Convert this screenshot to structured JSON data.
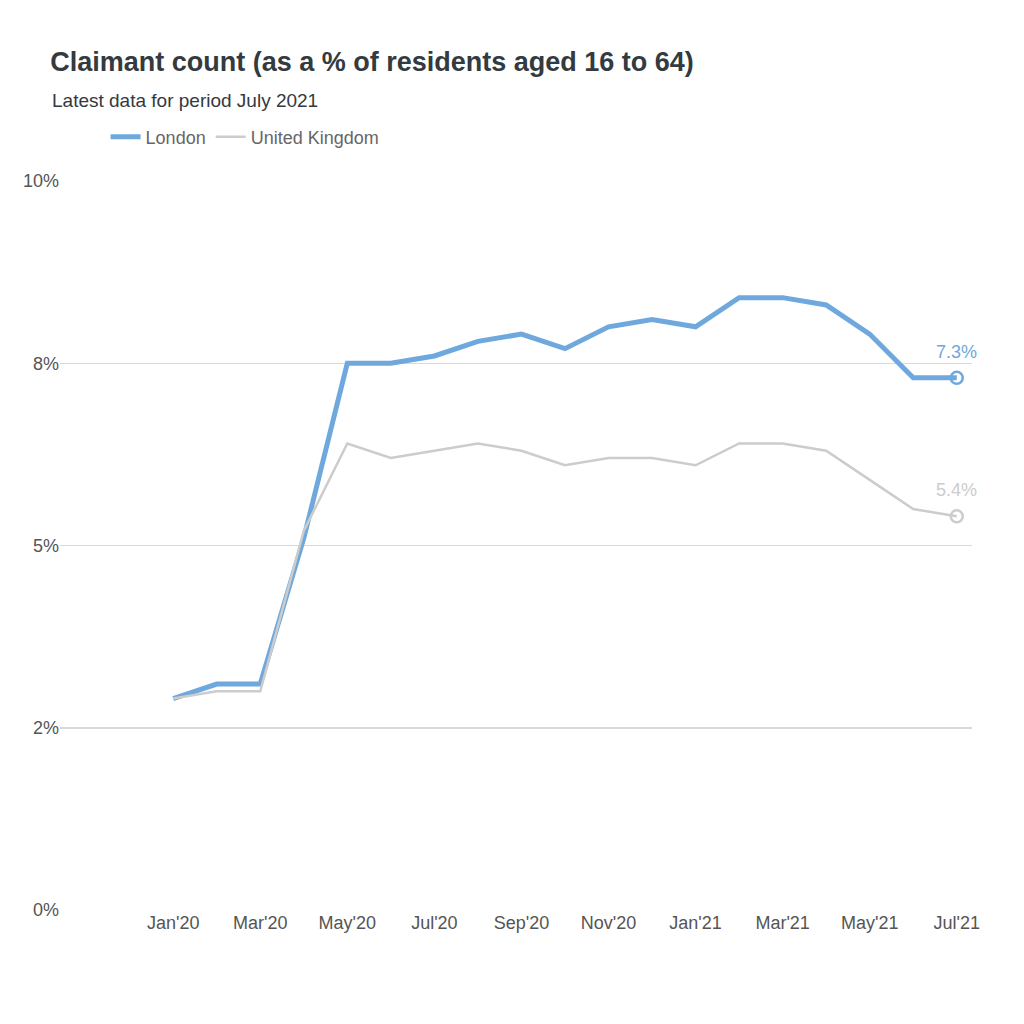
{
  "chart_data": {
    "type": "line",
    "title": "Claimant count (as a % of residents aged 16 to 64)",
    "subtitle": "Latest data for period July 2021",
    "categories": [
      "Jan'20",
      null,
      "Mar'20",
      null,
      "May'20",
      null,
      "Jul'20",
      null,
      "Sep'20",
      null,
      "Nov'20",
      null,
      "Jan'21",
      null,
      "Mar'21",
      null,
      "May'21",
      null,
      "Jul'21"
    ],
    "series": [
      {
        "name": "London",
        "color": "#6fa8dc",
        "marker": "circle",
        "values": [
          2.9,
          3.1,
          3.1,
          5.1,
          7.5,
          7.5,
          7.6,
          7.8,
          7.9,
          7.7,
          8.0,
          8.1,
          8.0,
          8.4,
          8.4,
          8.3,
          7.9,
          7.3,
          7.3
        ]
      },
      {
        "name": "United Kingdom",
        "color": "#cccccc",
        "marker": "circle",
        "values": [
          2.9,
          3.0,
          3.0,
          5.2,
          6.4,
          6.2,
          6.3,
          6.4,
          6.3,
          6.1,
          6.2,
          6.2,
          6.1,
          6.4,
          6.4,
          6.3,
          5.9,
          5.5,
          5.4
        ]
      }
    ],
    "annotations": [
      {
        "series": "London",
        "x": "Jul'21",
        "text": "7.3%"
      },
      {
        "series": "United Kingdom",
        "x": "Jul'21",
        "text": "5.4%"
      }
    ],
    "ylim": [
      0,
      10
    ],
    "yticks": [
      {
        "value": 0,
        "label": "0%"
      },
      {
        "value": 2.5,
        "label": "2%"
      },
      {
        "value": 5,
        "label": "5%"
      },
      {
        "value": 7.5,
        "label": "8%"
      },
      {
        "value": 10,
        "label": "10%"
      }
    ],
    "grid": true,
    "legend": "top-left"
  }
}
